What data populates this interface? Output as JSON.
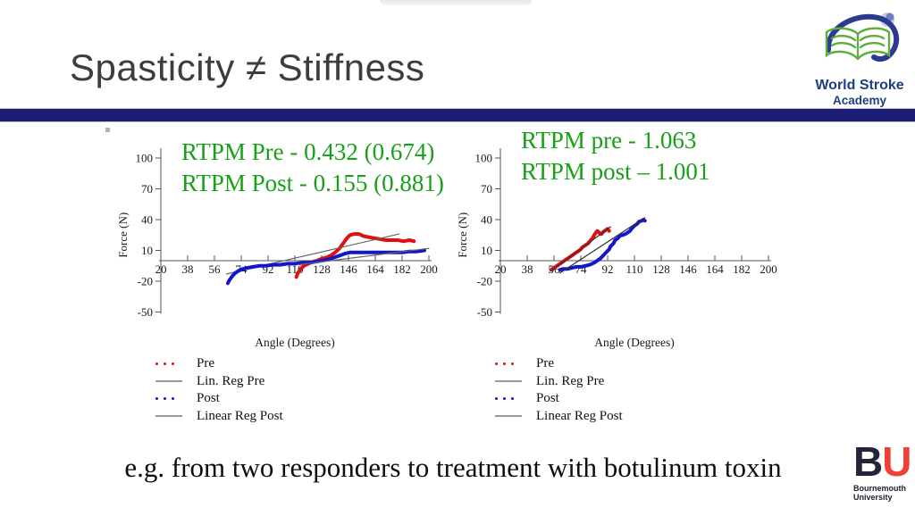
{
  "slide": {
    "title": "Spasticity ≠ Stiffness",
    "bottom_text": "e.g. from two responders to treatment with botulinum toxin"
  },
  "logos": {
    "wsa": {
      "line1": "World Stroke",
      "line2": "Academy"
    },
    "bu": {
      "b": "B",
      "u": "U",
      "line1": "Bournemouth",
      "line2": "University"
    }
  },
  "colors": {
    "divider": "#1c1c75",
    "annotation_green": "#18a018",
    "pre_red": "#dd1111",
    "post_blue": "#1515cc",
    "regression_gray": "#666666"
  },
  "chart_data": [
    {
      "type": "line",
      "title_lines": [
        "RTPM Pre - 0.432 (0.674)",
        "RTPM Post - 0.155 (0.881)"
      ],
      "xlabel": "Angle (Degrees)",
      "ylabel": "Force (N)",
      "xlim": [
        20,
        200
      ],
      "ylim": [
        -50,
        100
      ],
      "xticks": [
        20,
        38,
        56,
        74,
        92,
        110,
        128,
        146,
        164,
        182,
        200
      ],
      "yticks": [
        100,
        70,
        40,
        10,
        -20,
        -50
      ],
      "legend": [
        {
          "label": "Pre",
          "style": "dots",
          "color": "#dd1111"
        },
        {
          "label": "Lin. Reg Pre",
          "style": "line",
          "color": "#999999"
        },
        {
          "label": "Post",
          "style": "dots",
          "color": "#1515cc"
        },
        {
          "label": "Linear Reg Post",
          "style": "line",
          "color": "#999999"
        }
      ],
      "series": [
        {
          "name": "Pre",
          "color": "#dd1111",
          "width": 4,
          "points": [
            [
              111,
              -16
            ],
            [
              112,
              -12
            ],
            [
              114,
              -8
            ],
            [
              116,
              -5
            ],
            [
              119,
              -3
            ],
            [
              122,
              -1
            ],
            [
              125,
              0
            ],
            [
              128,
              2
            ],
            [
              131,
              3
            ],
            [
              134,
              5
            ],
            [
              137,
              8
            ],
            [
              140,
              12
            ],
            [
              143,
              18
            ],
            [
              145,
              22
            ],
            [
              147,
              25
            ],
            [
              150,
              26
            ],
            [
              153,
              26
            ],
            [
              156,
              24
            ],
            [
              159,
              23
            ],
            [
              163,
              22
            ],
            [
              167,
              21
            ],
            [
              171,
              20
            ],
            [
              175,
              20
            ],
            [
              179,
              20
            ],
            [
              183,
              19
            ],
            [
              187,
              20
            ],
            [
              190,
              19
            ]
          ]
        },
        {
          "name": "Lin. Reg Pre",
          "color": "#666666",
          "width": 1.2,
          "points": [
            [
              64,
              -13
            ],
            [
              180,
              26
            ]
          ]
        },
        {
          "name": "Post",
          "color": "#1515cc",
          "width": 4,
          "points": [
            [
              65,
              -22
            ],
            [
              66,
              -19
            ],
            [
              68,
              -15
            ],
            [
              70,
              -12
            ],
            [
              72,
              -10
            ],
            [
              75,
              -8
            ],
            [
              78,
              -7
            ],
            [
              82,
              -6
            ],
            [
              86,
              -5
            ],
            [
              90,
              -5
            ],
            [
              95,
              -4
            ],
            [
              100,
              -4
            ],
            [
              105,
              -3
            ],
            [
              110,
              -3
            ],
            [
              115,
              -2
            ],
            [
              120,
              -2
            ],
            [
              124,
              -1
            ],
            [
              128,
              0
            ],
            [
              132,
              1
            ],
            [
              136,
              3
            ],
            [
              140,
              5
            ],
            [
              144,
              7
            ],
            [
              147,
              8
            ],
            [
              152,
              8
            ],
            [
              158,
              8
            ],
            [
              164,
              8
            ],
            [
              170,
              8
            ],
            [
              176,
              8
            ],
            [
              182,
              8
            ],
            [
              187,
              9
            ],
            [
              192,
              9
            ],
            [
              197,
              10
            ]
          ]
        },
        {
          "name": "Linear Reg Post",
          "color": "#666666",
          "width": 1.2,
          "points": [
            [
              112,
              -4
            ],
            [
              200,
              12
            ]
          ]
        }
      ]
    },
    {
      "type": "line",
      "title_lines": [
        "RTPM pre - 1.063",
        "RTPM post – 1.001"
      ],
      "xlabel": "Angle (Degrees)",
      "ylabel": "Force (N)",
      "xlim": [
        20,
        200
      ],
      "ylim": [
        -50,
        100
      ],
      "xticks": [
        20,
        38,
        56,
        74,
        92,
        110,
        128,
        146,
        164,
        182,
        200
      ],
      "yticks": [
        100,
        70,
        40,
        10,
        -20,
        -50
      ],
      "legend": [
        {
          "label": "Pre",
          "style": "dots",
          "color": "#dd1111"
        },
        {
          "label": "Lin. Reg Pre",
          "style": "line",
          "color": "#999999"
        },
        {
          "label": "Post",
          "style": "dots",
          "color": "#1515cc"
        },
        {
          "label": "Linear Reg Post",
          "style": "line",
          "color": "#999999"
        }
      ],
      "series": [
        {
          "name": "Pre",
          "color": "#dd1111",
          "width": 4,
          "points": [
            [
              54,
              -9
            ],
            [
              56,
              -7
            ],
            [
              58,
              -5
            ],
            [
              60,
              -3
            ],
            [
              62,
              -1
            ],
            [
              64,
              1
            ],
            [
              66,
              3
            ],
            [
              68,
              5
            ],
            [
              70,
              7
            ],
            [
              72,
              9
            ],
            [
              74,
              11
            ],
            [
              75,
              13
            ],
            [
              77,
              15
            ],
            [
              79,
              17
            ],
            [
              80,
              19
            ],
            [
              82,
              22
            ],
            [
              83,
              25
            ],
            [
              84,
              27
            ],
            [
              85,
              29
            ],
            [
              86,
              28
            ],
            [
              87,
              26
            ],
            [
              88,
              26
            ],
            [
              89,
              28
            ],
            [
              91,
              30
            ],
            [
              92,
              31
            ],
            [
              93,
              29
            ]
          ]
        },
        {
          "name": "Lin. Reg Pre",
          "color": "#333333",
          "width": 1.2,
          "points": [
            [
              54,
              -10
            ],
            [
              94,
              33
            ]
          ]
        },
        {
          "name": "Post",
          "color": "#1515cc",
          "width": 4,
          "points": [
            [
              60,
              -9
            ],
            [
              62,
              -8
            ],
            [
              65,
              -8
            ],
            [
              68,
              -7
            ],
            [
              71,
              -6
            ],
            [
              74,
              -6
            ],
            [
              77,
              -5
            ],
            [
              80,
              -4
            ],
            [
              83,
              -2
            ],
            [
              85,
              0
            ],
            [
              87,
              2
            ],
            [
              89,
              5
            ],
            [
              91,
              8
            ],
            [
              93,
              11
            ],
            [
              94,
              14
            ],
            [
              96,
              17
            ],
            [
              97,
              20
            ],
            [
              99,
              22
            ],
            [
              100,
              24
            ],
            [
              102,
              25
            ],
            [
              104,
              26
            ],
            [
              105,
              27
            ],
            [
              107,
              29
            ],
            [
              108,
              31
            ],
            [
              110,
              34
            ],
            [
              112,
              36
            ],
            [
              113,
              38
            ],
            [
              115,
              39
            ],
            [
              116,
              40
            ],
            [
              117,
              39
            ]
          ]
        },
        {
          "name": "Linear Reg Post",
          "color": "#333333",
          "width": 1.2,
          "points": [
            [
              60,
              -12
            ],
            [
              117,
              42
            ]
          ]
        }
      ]
    }
  ]
}
